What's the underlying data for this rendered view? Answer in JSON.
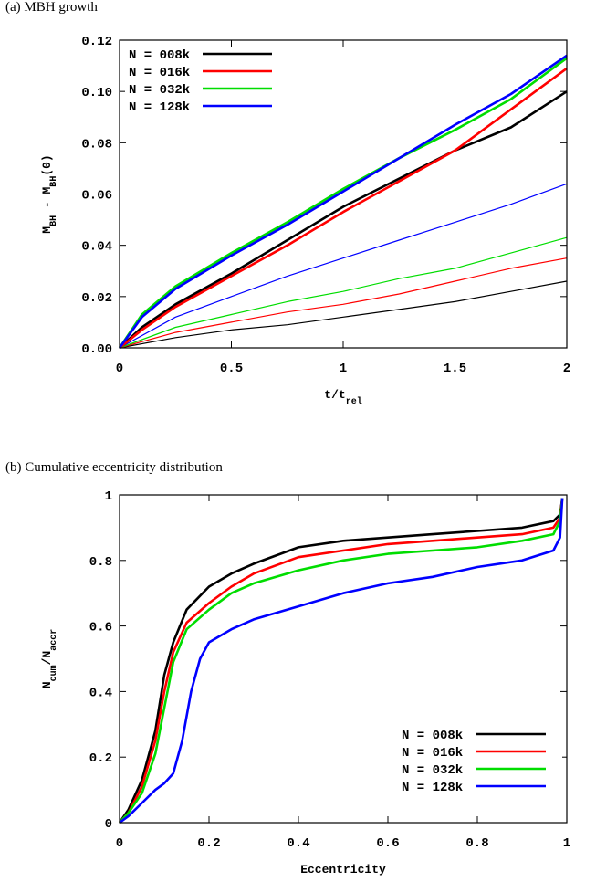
{
  "chart_data": [
    {
      "type": "line",
      "caption": "(a) MBH growth",
      "xlabel": "t/t_rel",
      "ylabel": "M_BH - M_BH(0)",
      "xlim": [
        0,
        2
      ],
      "ylim": [
        0,
        0.12
      ],
      "xticks": [
        "0",
        "0.5",
        "1",
        "1.5",
        "2"
      ],
      "yticks": [
        "0.00",
        "0.02",
        "0.04",
        "0.06",
        "0.08",
        "0.10",
        "0.12"
      ],
      "legend_position": "top-left",
      "series": [
        {
          "name": "N = 008k",
          "color": "#000000",
          "style": "thick",
          "x": [
            0,
            0.1,
            0.25,
            0.5,
            0.75,
            1.0,
            1.25,
            1.5,
            1.75,
            2.0
          ],
          "y": [
            0,
            0.008,
            0.017,
            0.029,
            0.042,
            0.055,
            0.066,
            0.077,
            0.086,
            0.1
          ]
        },
        {
          "name": "N = 016k",
          "color": "#ff0000",
          "style": "thick",
          "x": [
            0,
            0.1,
            0.25,
            0.5,
            0.75,
            1.0,
            1.25,
            1.5,
            1.75,
            2.0
          ],
          "y": [
            0,
            0.007,
            0.016,
            0.028,
            0.04,
            0.053,
            0.065,
            0.077,
            0.093,
            0.109
          ]
        },
        {
          "name": "N = 032k",
          "color": "#00dd00",
          "style": "thick",
          "x": [
            0,
            0.1,
            0.25,
            0.5,
            0.75,
            1.0,
            1.25,
            1.5,
            1.75,
            2.0
          ],
          "y": [
            0,
            0.013,
            0.024,
            0.037,
            0.049,
            0.062,
            0.074,
            0.085,
            0.097,
            0.113
          ]
        },
        {
          "name": "N = 128k",
          "color": "#0000ff",
          "style": "thick",
          "x": [
            0,
            0.1,
            0.25,
            0.5,
            0.75,
            1.0,
            1.25,
            1.5,
            1.75,
            2.0
          ],
          "y": [
            0,
            0.012,
            0.023,
            0.036,
            0.048,
            0.061,
            0.074,
            0.087,
            0.099,
            0.114
          ]
        },
        {
          "color": "#000000",
          "style": "thin",
          "x": [
            0,
            0.25,
            0.5,
            0.75,
            1.0,
            1.25,
            1.5,
            1.75,
            2.0
          ],
          "y": [
            0,
            0.004,
            0.007,
            0.009,
            0.012,
            0.015,
            0.018,
            0.022,
            0.026
          ]
        },
        {
          "color": "#ff0000",
          "style": "thin",
          "x": [
            0,
            0.25,
            0.5,
            0.75,
            1.0,
            1.25,
            1.5,
            1.75,
            2.0
          ],
          "y": [
            0,
            0.006,
            0.01,
            0.014,
            0.017,
            0.021,
            0.026,
            0.031,
            0.035
          ]
        },
        {
          "color": "#00dd00",
          "style": "thin",
          "x": [
            0,
            0.25,
            0.5,
            0.75,
            1.0,
            1.25,
            1.5,
            1.75,
            2.0
          ],
          "y": [
            0,
            0.008,
            0.013,
            0.018,
            0.022,
            0.027,
            0.031,
            0.037,
            0.043
          ]
        },
        {
          "color": "#0000ff",
          "style": "thin",
          "x": [
            0,
            0.25,
            0.5,
            0.75,
            1.0,
            1.25,
            1.5,
            1.75,
            2.0
          ],
          "y": [
            0,
            0.012,
            0.02,
            0.028,
            0.035,
            0.042,
            0.049,
            0.056,
            0.064
          ]
        }
      ]
    },
    {
      "type": "line",
      "caption": "(b) Cumulative eccentricity distribution",
      "xlabel": "Eccentricity",
      "ylabel": "N_cum/N_accr",
      "xlim": [
        0,
        1
      ],
      "ylim": [
        0,
        1
      ],
      "xticks": [
        "0",
        "0.2",
        "0.4",
        "0.6",
        "0.8",
        "1"
      ],
      "yticks": [
        "0",
        "0.2",
        "0.4",
        "0.6",
        "0.8",
        "1"
      ],
      "legend_position": "bottom-right",
      "series": [
        {
          "name": "N = 008k",
          "color": "#000000",
          "x": [
            0,
            0.02,
            0.05,
            0.08,
            0.1,
            0.12,
            0.15,
            0.2,
            0.25,
            0.3,
            0.4,
            0.5,
            0.6,
            0.7,
            0.8,
            0.9,
            0.97,
            0.985,
            0.99
          ],
          "y": [
            0,
            0.04,
            0.13,
            0.28,
            0.45,
            0.55,
            0.65,
            0.72,
            0.76,
            0.79,
            0.84,
            0.86,
            0.87,
            0.88,
            0.89,
            0.9,
            0.92,
            0.94,
            0.99
          ]
        },
        {
          "name": "N = 016k",
          "color": "#ff0000",
          "x": [
            0,
            0.02,
            0.05,
            0.08,
            0.1,
            0.12,
            0.15,
            0.2,
            0.25,
            0.3,
            0.4,
            0.5,
            0.6,
            0.7,
            0.8,
            0.9,
            0.97,
            0.985,
            0.99
          ],
          "y": [
            0,
            0.03,
            0.11,
            0.25,
            0.4,
            0.52,
            0.61,
            0.67,
            0.72,
            0.76,
            0.81,
            0.83,
            0.85,
            0.86,
            0.87,
            0.88,
            0.9,
            0.93,
            0.99
          ]
        },
        {
          "name": "N = 032k",
          "color": "#00dd00",
          "x": [
            0,
            0.02,
            0.05,
            0.08,
            0.1,
            0.12,
            0.15,
            0.2,
            0.25,
            0.3,
            0.4,
            0.5,
            0.6,
            0.7,
            0.8,
            0.9,
            0.97,
            0.985,
            0.99
          ],
          "y": [
            0,
            0.03,
            0.09,
            0.21,
            0.35,
            0.49,
            0.59,
            0.65,
            0.7,
            0.73,
            0.77,
            0.8,
            0.82,
            0.83,
            0.84,
            0.86,
            0.88,
            0.92,
            0.99
          ]
        },
        {
          "name": "N = 128k",
          "color": "#0000ff",
          "x": [
            0,
            0.02,
            0.05,
            0.08,
            0.1,
            0.12,
            0.14,
            0.16,
            0.18,
            0.2,
            0.25,
            0.3,
            0.4,
            0.5,
            0.6,
            0.7,
            0.8,
            0.9,
            0.97,
            0.985,
            0.99
          ],
          "y": [
            0,
            0.02,
            0.06,
            0.1,
            0.12,
            0.15,
            0.25,
            0.4,
            0.5,
            0.55,
            0.59,
            0.62,
            0.66,
            0.7,
            0.73,
            0.75,
            0.78,
            0.8,
            0.83,
            0.87,
            0.99
          ]
        }
      ]
    }
  ]
}
